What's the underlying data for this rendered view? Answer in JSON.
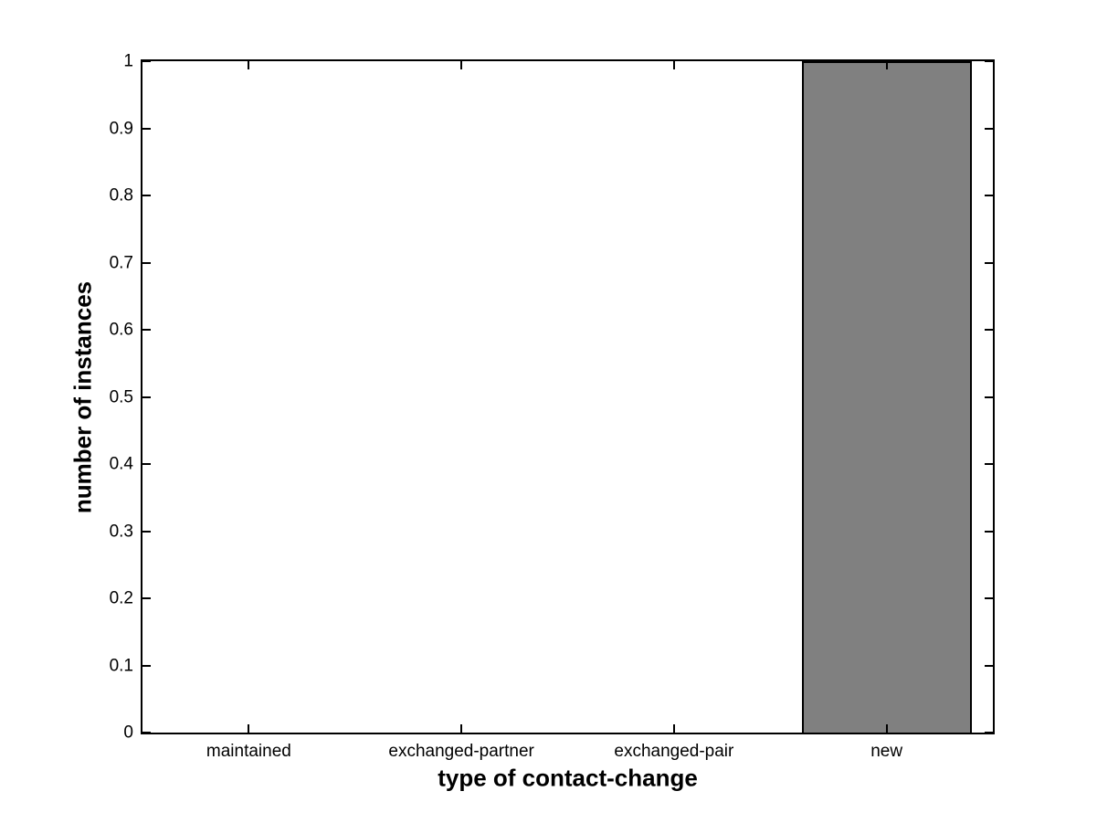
{
  "figure": {
    "background_color": "#ffffff",
    "axis_color": "#000000"
  },
  "chart_data": {
    "type": "bar",
    "title": "",
    "xlabel": "type of contact-change",
    "ylabel": "number of instances",
    "categories": [
      "maintained",
      "exchanged-partner",
      "exchanged-pair",
      "new"
    ],
    "values": [
      0,
      0,
      0,
      1
    ],
    "ylim": [
      0,
      1
    ],
    "ytick_step": 0.1,
    "yticks": [
      "0",
      "0.1",
      "0.2",
      "0.3",
      "0.4",
      "0.5",
      "0.6",
      "0.7",
      "0.8",
      "0.9",
      "1"
    ],
    "bar_width_fraction": 0.8,
    "bar_color": "#808080",
    "bar_edge_color": "#000000",
    "grid": false,
    "legend": null,
    "tick_direction": "in",
    "box": true
  }
}
